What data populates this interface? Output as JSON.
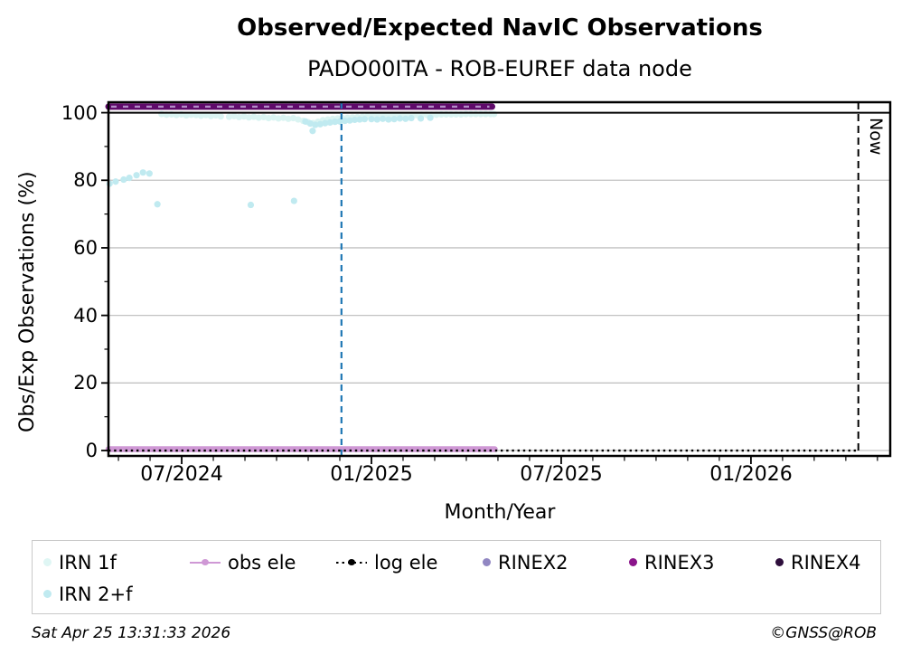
{
  "page": {
    "footer_left": "Sat Apr 25 13:31:33 2026",
    "footer_right": "©GNSS@ROB"
  },
  "chart_data": {
    "type": "scatter",
    "title": "Observed/Expected NavIC Observations",
    "subtitle": "PADO00ITA - ROB-EUREF data node",
    "xlabel": "Month/Year",
    "ylabel": "Obs/Exp Observations (%)",
    "grid_color": "#c2c2c2",
    "frame_color": "#000000",
    "x_axis": {
      "min": 2024.307,
      "max": 2026.367,
      "major_ticks": [
        {
          "value": 2024.5,
          "label": "07/2024"
        },
        {
          "value": 2025.0,
          "label": "01/2025"
        },
        {
          "value": 2025.5,
          "label": "07/2025"
        },
        {
          "value": 2026.0,
          "label": "01/2026"
        }
      ],
      "minor_tick_interval_months": 1
    },
    "y_axis": {
      "min": -1.6,
      "max": 103.1,
      "major_ticks": [
        100,
        80,
        60,
        40,
        20,
        0
      ],
      "tick_labels": [
        "100",
        "80",
        "60",
        "40",
        "20",
        "0"
      ],
      "minor_ticks": [
        10,
        30,
        50,
        70,
        90
      ],
      "gridlines": [
        0,
        20,
        40,
        60,
        80
      ]
    },
    "reference_lines": [
      {
        "name": "hundred-percent-line",
        "orientation": "horizontal",
        "y": 100,
        "style": "solid",
        "color": "#000000",
        "width": 2
      },
      {
        "name": "epoch-marker",
        "orientation": "vertical",
        "x": 2024.921,
        "style": "dashed",
        "dash": "7 5",
        "color": "#1f77b4",
        "width": 2.2
      },
      {
        "name": "now-line",
        "orientation": "vertical",
        "x": 2026.283,
        "style": "dashed",
        "dash": "8 5",
        "color": "#000000",
        "width": 2,
        "label": "Now"
      }
    ],
    "series": [
      {
        "name": "IRN 1f",
        "type": "scatter",
        "color": "#daf4f2",
        "marker_radius": 3.6,
        "points": [
          [
            2024.447,
            99.6
          ],
          [
            2024.46,
            99.4
          ],
          [
            2024.473,
            99.5
          ],
          [
            2024.486,
            99.3
          ],
          [
            2024.499,
            99.5
          ],
          [
            2024.512,
            99.2
          ],
          [
            2024.525,
            99.4
          ],
          [
            2024.538,
            99.3
          ],
          [
            2024.551,
            99.1
          ],
          [
            2024.564,
            99.3
          ],
          [
            2024.577,
            99.0
          ],
          [
            2024.59,
            99.2
          ],
          [
            2024.603,
            98.9
          ],
          [
            2024.625,
            98.8
          ],
          [
            2024.638,
            99.0
          ],
          [
            2024.651,
            98.7
          ],
          [
            2024.664,
            98.9
          ],
          [
            2024.677,
            98.6
          ],
          [
            2024.69,
            98.8
          ],
          [
            2024.703,
            98.5
          ],
          [
            2024.716,
            98.7
          ],
          [
            2024.729,
            98.4
          ],
          [
            2024.742,
            98.6
          ],
          [
            2024.755,
            98.3
          ],
          [
            2024.768,
            98.5
          ],
          [
            2024.781,
            98.2
          ],
          [
            2024.794,
            98.4
          ],
          [
            2024.807,
            98.0
          ],
          [
            2024.82,
            97.6
          ],
          [
            2024.833,
            97.2
          ],
          [
            2024.846,
            96.9
          ],
          [
            2024.859,
            97.3
          ],
          [
            2024.872,
            97.8
          ],
          [
            2024.885,
            98.0
          ],
          [
            2024.898,
            98.2
          ],
          [
            2024.911,
            98.3
          ],
          [
            2024.924,
            98.4
          ],
          [
            2024.937,
            98.5
          ],
          [
            2024.95,
            98.6
          ],
          [
            2024.963,
            98.7
          ],
          [
            2024.976,
            98.8
          ],
          [
            2024.989,
            98.9
          ],
          [
            2025.002,
            99.0
          ],
          [
            2025.015,
            99.0
          ],
          [
            2025.028,
            99.1
          ],
          [
            2025.041,
            99.1
          ],
          [
            2025.054,
            99.2
          ],
          [
            2025.067,
            99.2
          ],
          [
            2025.08,
            99.2
          ],
          [
            2025.093,
            99.3
          ],
          [
            2025.106,
            99.3
          ],
          [
            2025.119,
            99.3
          ],
          [
            2025.132,
            99.4
          ],
          [
            2025.145,
            99.4
          ],
          [
            2025.158,
            99.4
          ],
          [
            2025.171,
            99.4
          ],
          [
            2025.184,
            99.5
          ],
          [
            2025.197,
            99.5
          ],
          [
            2025.21,
            99.5
          ],
          [
            2025.223,
            99.5
          ],
          [
            2025.236,
            99.5
          ],
          [
            2025.249,
            99.6
          ],
          [
            2025.262,
            99.6
          ],
          [
            2025.275,
            99.6
          ],
          [
            2025.288,
            99.6
          ],
          [
            2025.301,
            99.6
          ],
          [
            2025.314,
            99.6
          ],
          [
            2025.323,
            99.6
          ]
        ]
      },
      {
        "name": "IRN 2+f",
        "type": "scatter",
        "color": "#c0eaf0",
        "marker_radius": 3.6,
        "points": [
          [
            2024.31,
            79.0
          ],
          [
            2024.326,
            79.6
          ],
          [
            2024.347,
            80.2
          ],
          [
            2024.362,
            80.7
          ],
          [
            2024.381,
            81.5
          ],
          [
            2024.398,
            82.3
          ],
          [
            2024.415,
            82.0
          ],
          [
            2024.436,
            72.9
          ],
          [
            2024.682,
            72.7
          ],
          [
            2024.796,
            73.9
          ],
          [
            2024.826,
            97.4
          ],
          [
            2024.839,
            96.8
          ],
          [
            2024.845,
            94.6
          ],
          [
            2024.852,
            96.4
          ],
          [
            2024.865,
            96.6
          ],
          [
            2024.878,
            96.9
          ],
          [
            2024.891,
            97.1
          ],
          [
            2024.904,
            97.3
          ],
          [
            2024.917,
            97.4
          ],
          [
            2024.93,
            97.6
          ],
          [
            2024.943,
            97.7
          ],
          [
            2024.956,
            97.9
          ],
          [
            2024.969,
            98.0
          ],
          [
            2024.982,
            98.1
          ],
          [
            2025.0,
            98.1
          ],
          [
            2025.015,
            98.0
          ],
          [
            2025.03,
            98.2
          ],
          [
            2025.045,
            98.0
          ],
          [
            2025.06,
            98.1
          ],
          [
            2025.075,
            98.3
          ],
          [
            2025.09,
            98.2
          ],
          [
            2025.105,
            98.4
          ],
          [
            2025.13,
            98.3
          ],
          [
            2025.155,
            98.5
          ]
        ]
      },
      {
        "name": "obs ele",
        "type": "line",
        "color": "#cf98d5",
        "stroke_width": 6.5,
        "y": 0.4,
        "x_start": 2024.307,
        "x_end": 2025.325
      },
      {
        "name": "log ele",
        "type": "dotted-line",
        "color": "#000000",
        "stroke_width": 2.4,
        "dash": "2.4 3.8",
        "y": 0,
        "x_start": 2024.307,
        "x_end": 2026.283
      },
      {
        "name": "RINEX2",
        "type": "scatter",
        "color": "#9187c2",
        "marker_radius": 3.6,
        "points": []
      },
      {
        "name": "RINEX3",
        "type": "band",
        "color": "#5f0a6a",
        "dash_color": "#b18cc6",
        "stroke_width": 7,
        "y": 101.8,
        "x_start": 2024.307,
        "x_end": 2025.318
      },
      {
        "name": "RINEX4",
        "type": "scatter",
        "color": "#2e0e3c",
        "marker_radius": 3.6,
        "points": []
      }
    ],
    "legend": [
      {
        "label": "IRN 1f",
        "marker": "dot",
        "color": "#dff6f4"
      },
      {
        "label": "obs ele",
        "marker": "line-dot",
        "color": "#cf98d5"
      },
      {
        "label": "log ele",
        "marker": "dotted-line-dot",
        "color": "#000000"
      },
      {
        "label": "RINEX2",
        "marker": "dot",
        "color": "#9187c2"
      },
      {
        "label": "RINEX3",
        "marker": "dot",
        "color": "#8a148a"
      },
      {
        "label": "RINEX4",
        "marker": "dot",
        "color": "#2e0e3c"
      },
      {
        "label": "IRN 2+f",
        "marker": "dot",
        "color": "#c0eaf0"
      }
    ]
  }
}
